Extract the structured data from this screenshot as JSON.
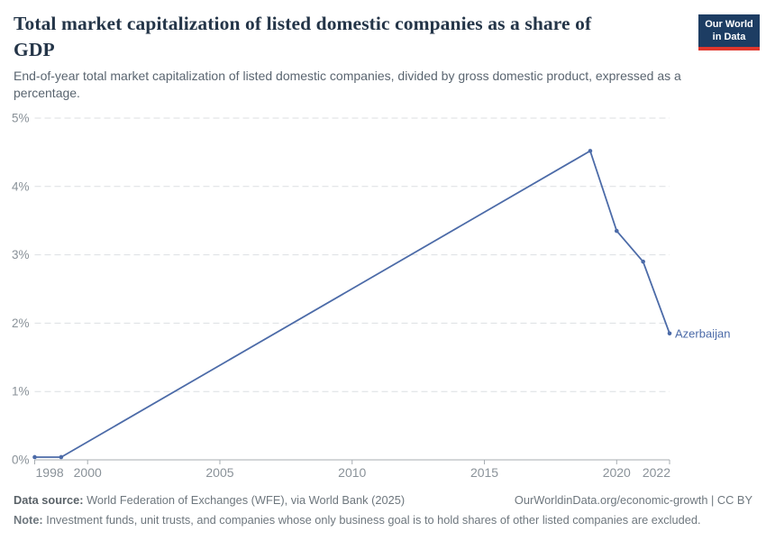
{
  "header": {
    "title": "Total market capitalization of listed domestic companies as a share of GDP",
    "title_line1": "Total market capitalization of listed domestic companies as a share of",
    "title_line2": "GDP",
    "subtitle": "End-of-year total market capitalization of listed domestic companies, divided by gross domestic product, expressed as a percentage.",
    "logo": {
      "line1": "Our World",
      "line2": "in Data",
      "bg_color": "#1d3d63",
      "bar_color": "#e0362c"
    }
  },
  "chart_data": {
    "type": "line",
    "title": "Total market capitalization of listed domestic companies as a share of GDP",
    "xlabel": "",
    "ylabel": "",
    "xlim": [
      1998,
      2022
    ],
    "ylim": [
      0,
      5
    ],
    "grid": "horizontal-dashed",
    "legend_position": "end-of-line-label",
    "x_ticks": [
      {
        "value": 1998,
        "label": "1998"
      },
      {
        "value": 2000,
        "label": "2000"
      },
      {
        "value": 2005,
        "label": "2005"
      },
      {
        "value": 2010,
        "label": "2010"
      },
      {
        "value": 2015,
        "label": "2015"
      },
      {
        "value": 2020,
        "label": "2020"
      },
      {
        "value": 2022,
        "label": "2022"
      }
    ],
    "y_ticks": [
      {
        "value": 0,
        "label": "0%"
      },
      {
        "value": 1,
        "label": "1%"
      },
      {
        "value": 2,
        "label": "2%"
      },
      {
        "value": 3,
        "label": "3%"
      },
      {
        "value": 4,
        "label": "4%"
      },
      {
        "value": 5,
        "label": "5%"
      }
    ],
    "series": [
      {
        "name": "Azerbaijan",
        "color": "#4c6ba8",
        "points": [
          [
            1998,
            0.04
          ],
          [
            1999,
            0.04
          ],
          [
            2019,
            4.52
          ],
          [
            2020,
            3.35
          ],
          [
            2021,
            2.9
          ],
          [
            2022,
            1.85
          ]
        ]
      }
    ]
  },
  "footer": {
    "data_source_label": "Data source:",
    "data_source": " World Federation of Exchanges (WFE), via World Bank (2025)",
    "credit": "OurWorldinData.org/economic-growth | CC BY",
    "note_label": "Note:",
    "note": " Investment funds, unit trusts, and companies whose only business goal is to hold shares of other listed companies are excluded."
  }
}
